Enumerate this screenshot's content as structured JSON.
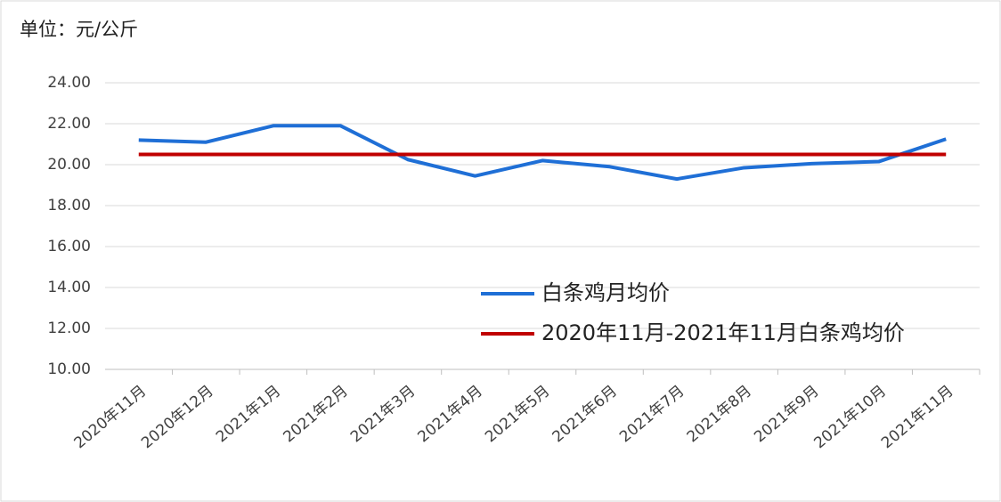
{
  "chart_data": {
    "type": "line",
    "unit_label": "单位：元/公斤",
    "categories": [
      "2020年11月",
      "2020年12月",
      "2021年1月",
      "2021年2月",
      "2021年3月",
      "2021年4月",
      "2021年5月",
      "2021年6月",
      "2021年7月",
      "2021年8月",
      "2021年9月",
      "2021年10月",
      "2021年11月"
    ],
    "series": [
      {
        "name": "白条鸡月均价",
        "color": "#1f6fd6",
        "values": [
          21.2,
          21.1,
          21.9,
          21.9,
          20.25,
          19.45,
          20.2,
          19.9,
          19.3,
          19.85,
          20.05,
          20.15,
          21.25
        ]
      },
      {
        "name": "2020年11月-2021年11月白条鸡均价",
        "color": "#c00000",
        "values": [
          20.5,
          20.5,
          20.5,
          20.5,
          20.5,
          20.5,
          20.5,
          20.5,
          20.5,
          20.5,
          20.5,
          20.5,
          20.5
        ]
      }
    ],
    "ylim": [
      10,
      24
    ],
    "yticks": [
      {
        "value": 10,
        "label": "10.00"
      },
      {
        "value": 12,
        "label": "12.00"
      },
      {
        "value": 14,
        "label": "14.00"
      },
      {
        "value": 16,
        "label": "16.00"
      },
      {
        "value": 18,
        "label": "18.00"
      },
      {
        "value": 20,
        "label": "20.00"
      },
      {
        "value": 22,
        "label": "22.00"
      },
      {
        "value": 24,
        "label": "24.00"
      }
    ],
    "grid": true
  }
}
